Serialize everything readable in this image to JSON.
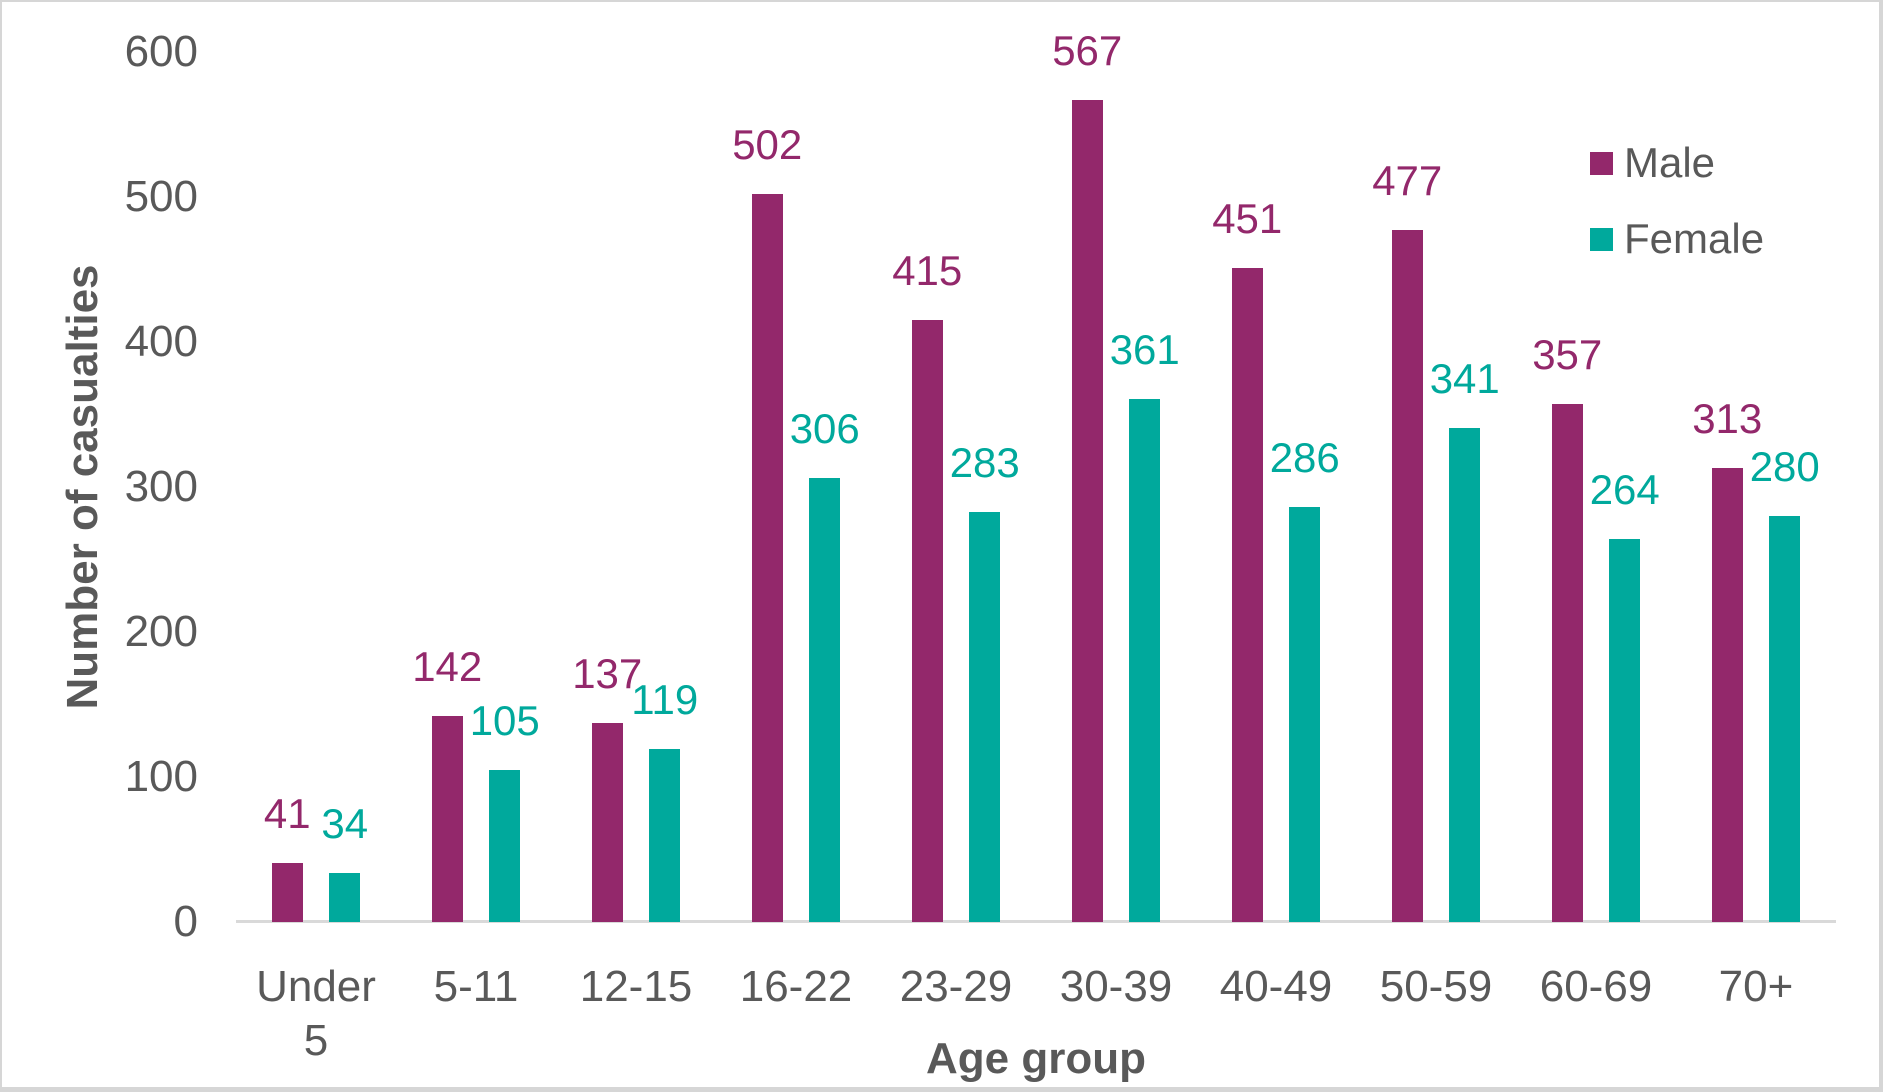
{
  "chart_data": {
    "type": "bar",
    "title": "",
    "xlabel": "Age group",
    "ylabel": "Number of casualties",
    "categories": [
      "Under 5",
      "5-11",
      "12-15",
      "16-22",
      "23-29",
      "30-39",
      "40-49",
      "50-59",
      "60-69",
      "70+"
    ],
    "series": [
      {
        "name": "Male",
        "color": "#93286B",
        "values": [
          41,
          142,
          137,
          502,
          415,
          567,
          451,
          477,
          357,
          313
        ]
      },
      {
        "name": "Female",
        "color": "#00A99C",
        "values": [
          34,
          105,
          119,
          306,
          283,
          361,
          286,
          341,
          264,
          280
        ]
      }
    ],
    "ylim": [
      0,
      600
    ],
    "yticks": [
      0,
      100,
      200,
      300,
      400,
      500,
      600
    ],
    "grid": false,
    "data_labels": true,
    "legend_position": "top-right"
  },
  "colors": {
    "axis_text": "#595959",
    "axis_line": "#D9D9D9",
    "background": "#FFFFFF",
    "border": "#D6D6D6"
  }
}
